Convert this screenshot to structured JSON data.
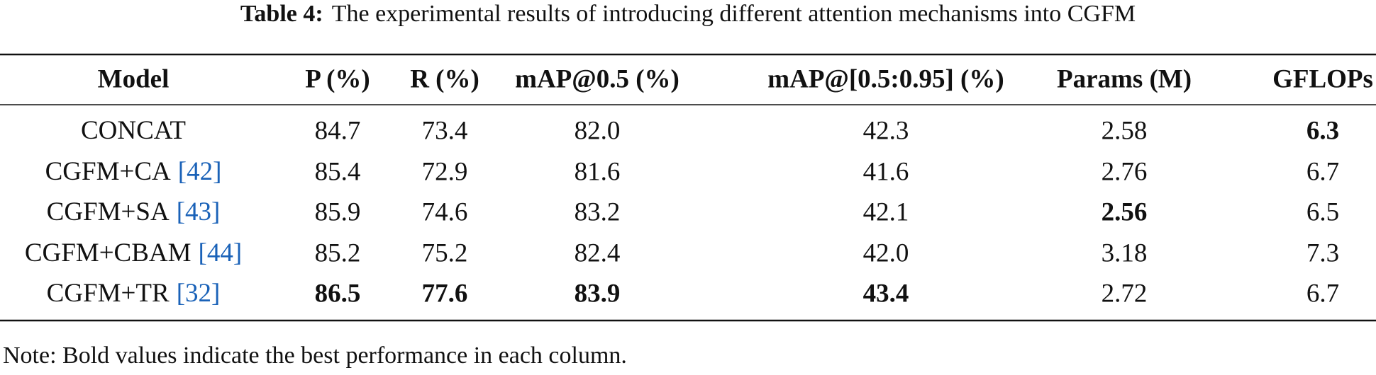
{
  "caption": {
    "label": "Table 4:",
    "text": "The experimental results of introducing different attention mechanisms into CGFM"
  },
  "table": {
    "header": [
      "Model",
      "P (%)",
      "R (%)",
      "mAP@0.5 (%)",
      "mAP@[0.5:0.95] (%)",
      "Params (M)",
      "GFLOPs"
    ],
    "rows": [
      {
        "model": "CONCAT",
        "values": [
          "84.7",
          "73.4",
          "82.0",
          "42.3",
          "2.58",
          "6.3"
        ]
      },
      {
        "model": "CGFM+CA",
        "ref": "[42]",
        "values": [
          "85.4",
          "72.9",
          "81.6",
          "41.6",
          "2.76",
          "6.7"
        ]
      },
      {
        "model": "CGFM+SA",
        "ref": "[43]",
        "values": [
          "85.9",
          "74.6",
          "83.2",
          "42.1",
          "2.56",
          "6.5"
        ]
      },
      {
        "model": "CGFM+CBAM",
        "ref": "[44]",
        "values": [
          "85.2",
          "75.2",
          "82.4",
          "42.0",
          "3.18",
          "7.3"
        ]
      },
      {
        "model": "CGFM+TR",
        "ref": "[32]",
        "values": [
          "86.5",
          "77.6",
          "83.9",
          "43.4",
          "2.72",
          "6.7"
        ]
      }
    ]
  },
  "note": "Note: Bold values indicate the best performance in each column."
}
